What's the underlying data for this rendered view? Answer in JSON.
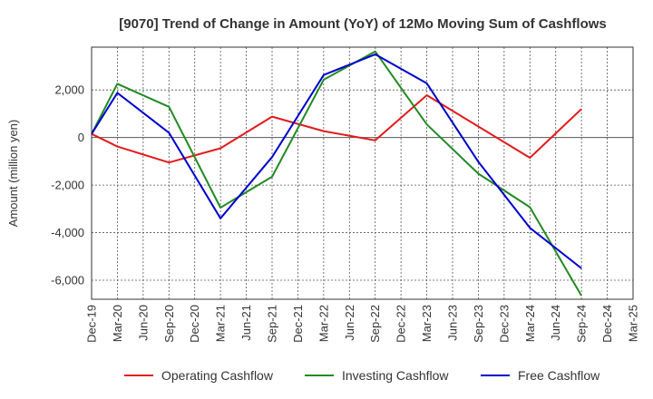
{
  "chart_data": {
    "type": "line",
    "title": "[9070]  Trend of Change in Amount (YoY) of 12Mo Moving Sum of Cashflows",
    "xlabel": "",
    "ylabel": "Amount (million yen)",
    "ylim": [
      -6800,
      3800
    ],
    "yticks": [
      2000,
      0,
      -2000,
      -4000,
      -6000
    ],
    "ytick_labels": [
      "2,000",
      "0",
      "-2,000",
      "-4,000",
      "-6,000"
    ],
    "categories": [
      "Dec-19",
      "Mar-20",
      "Jun-20",
      "Sep-20",
      "Dec-20",
      "Mar-21",
      "Jun-21",
      "Sep-21",
      "Dec-21",
      "Mar-22",
      "Jun-22",
      "Sep-22",
      "Dec-22",
      "Mar-23",
      "Jun-23",
      "Sep-23",
      "Dec-23",
      "Mar-24",
      "Jun-24",
      "Sep-24",
      "Dec-24",
      "Mar-25"
    ],
    "grid": true,
    "legend_position": "bottom",
    "series": [
      {
        "name": "Operating Cashflow",
        "color": "#e31a1c",
        "values": [
          150,
          -380,
          null,
          -1050,
          null,
          -450,
          null,
          880,
          null,
          270,
          null,
          -120,
          null,
          1780,
          null,
          null,
          null,
          -850,
          null,
          1200,
          null,
          null
        ]
      },
      {
        "name": "Investing Cashflow",
        "color": "#228b22",
        "values": [
          150,
          2260,
          null,
          1290,
          null,
          -2950,
          null,
          -1650,
          null,
          2430,
          null,
          3620,
          null,
          550,
          null,
          -1520,
          null,
          -2930,
          null,
          -6650,
          null,
          null
        ]
      },
      {
        "name": "Free Cashflow",
        "color": "#0000cd",
        "values": [
          150,
          1880,
          null,
          200,
          null,
          -3400,
          null,
          -820,
          null,
          2630,
          null,
          3500,
          null,
          2280,
          null,
          -1020,
          null,
          -3800,
          null,
          -5500,
          null,
          null
        ]
      }
    ]
  }
}
